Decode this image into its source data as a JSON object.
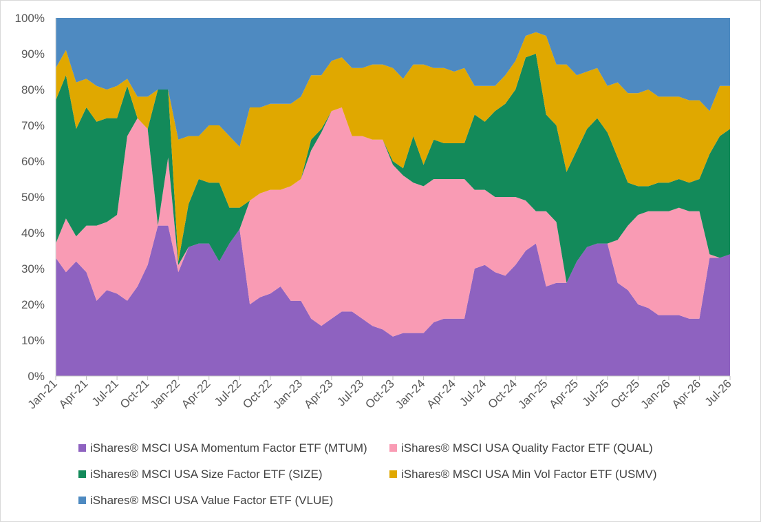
{
  "chart_data": {
    "type": "area",
    "stacked": true,
    "normalized": true,
    "title": "",
    "xlabel": "",
    "ylabel": "",
    "ylim": [
      0,
      100
    ],
    "y_ticks": [
      "0%",
      "10%",
      "20%",
      "30%",
      "40%",
      "50%",
      "60%",
      "70%",
      "80%",
      "90%",
      "100%"
    ],
    "x_tick_labels": [
      "Jan-21",
      "Apr-21",
      "Jul-21",
      "Oct-21",
      "Jan-22",
      "Apr-22",
      "Jul-22",
      "Oct-22",
      "Jan-23",
      "Apr-23",
      "Jul-23",
      "Oct-23",
      "Jan-24",
      "Apr-24",
      "Jul-24",
      "Oct-24",
      "Jan-25",
      "Apr-25",
      "Jul-25",
      "Oct-25",
      "Jan-26",
      "Apr-26",
      "Jul-26"
    ],
    "grid": false,
    "legend_position": "bottom",
    "x": [
      "Jan-21",
      "Feb-21",
      "Mar-21",
      "Apr-21",
      "May-21",
      "Jun-21",
      "Jul-21",
      "Aug-21",
      "Sep-21",
      "Oct-21",
      "Nov-21",
      "Dec-21",
      "Jan-22",
      "Feb-22",
      "Mar-22",
      "Apr-22",
      "May-22",
      "Jun-22",
      "Jul-22",
      "Aug-22",
      "Sep-22",
      "Oct-22",
      "Nov-22",
      "Dec-22",
      "Jan-23",
      "Feb-23",
      "Mar-23",
      "Apr-23",
      "May-23",
      "Jun-23",
      "Jul-23",
      "Aug-23",
      "Sep-23",
      "Oct-23",
      "Nov-23",
      "Dec-23",
      "Jan-24",
      "Feb-24",
      "Mar-24",
      "Apr-24",
      "May-24",
      "Jun-24",
      "Jul-24",
      "Aug-24",
      "Sep-24",
      "Oct-24",
      "Nov-24",
      "Dec-24",
      "Jan-25",
      "Feb-25",
      "Mar-25",
      "Apr-25",
      "May-25",
      "Jun-25",
      "Jul-25",
      "Aug-25",
      "Sep-25",
      "Oct-25",
      "Nov-25",
      "Dec-25",
      "Jan-26",
      "Feb-26",
      "Mar-26",
      "Apr-26",
      "May-26",
      "Jun-26",
      "Jul-26"
    ],
    "series": [
      {
        "name": "iShares® MSCI USA Momentum Factor ETF (MTUM)",
        "color": "#8e62c0",
        "values": [
          33,
          29,
          32,
          29,
          21,
          24,
          23,
          21,
          25,
          31,
          42,
          42,
          29,
          36,
          37,
          37,
          32,
          37,
          41,
          20,
          22,
          23,
          25,
          21,
          21,
          16,
          14,
          16,
          18,
          18,
          16,
          14,
          13,
          11,
          12,
          12,
          12,
          15,
          16,
          16,
          16,
          30,
          31,
          29,
          28,
          31,
          35,
          37,
          25,
          26,
          26,
          32,
          36,
          37,
          37,
          26,
          24,
          20,
          19,
          17,
          17,
          17,
          16,
          16,
          33,
          33,
          34
        ]
      },
      {
        "name": "iShares® MSCI USA Quality Factor ETF (QUAL)",
        "color": "#f99bb4",
        "values": [
          4,
          15,
          7,
          13,
          21,
          19,
          22,
          46,
          47,
          38,
          0,
          19,
          2,
          0,
          0,
          0,
          0,
          0,
          0,
          29,
          29,
          29,
          27,
          32,
          34,
          47,
          54,
          58,
          57,
          49,
          51,
          52,
          53,
          48,
          44,
          42,
          41,
          40,
          39,
          39,
          39,
          22,
          21,
          21,
          22,
          19,
          14,
          9,
          21,
          17,
          0,
          0,
          0,
          0,
          0,
          12,
          18,
          25,
          27,
          29,
          29,
          30,
          30,
          30,
          1,
          0,
          0
        ]
      },
      {
        "name": "iShares® MSCI USA Size Factor ETF (SIZE)",
        "color": "#138a5a",
        "values": [
          40,
          40,
          30,
          33,
          29,
          29,
          27,
          14,
          0,
          0,
          38,
          19,
          1,
          12,
          18,
          17,
          22,
          10,
          6,
          0,
          0,
          0,
          0,
          0,
          0,
          3,
          1,
          0,
          0,
          0,
          0,
          0,
          0,
          1,
          2,
          13,
          6,
          11,
          10,
          10,
          10,
          21,
          19,
          24,
          26,
          30,
          40,
          44,
          27,
          27,
          31,
          31,
          33,
          35,
          31,
          23,
          12,
          8,
          7,
          8,
          8,
          8,
          8,
          9,
          28,
          34,
          35
        ]
      },
      {
        "name": "iShares® MSCI USA Min Vol Factor ETF (USMV)",
        "color": "#e0a800",
        "values": [
          9,
          7,
          13,
          8,
          10,
          8,
          9,
          2,
          6,
          9,
          0,
          0,
          34,
          19,
          12,
          16,
          16,
          20,
          17,
          26,
          24,
          24,
          24,
          23,
          23,
          18,
          15,
          14,
          14,
          19,
          19,
          21,
          21,
          26,
          25,
          20,
          28,
          20,
          21,
          20,
          21,
          8,
          10,
          7,
          8,
          8,
          6,
          6,
          22,
          17,
          30,
          21,
          16,
          14,
          13,
          21,
          25,
          26,
          27,
          24,
          24,
          23,
          23,
          22,
          12,
          14,
          12
        ]
      },
      {
        "name": "iShares® MSCI USA Value Factor ETF (VLUE)",
        "color": "#4e8ac1",
        "values": [
          14,
          9,
          18,
          17,
          19,
          20,
          19,
          17,
          22,
          22,
          20,
          20,
          34,
          33,
          33,
          30,
          30,
          33,
          36,
          25,
          25,
          24,
          24,
          24,
          22,
          16,
          16,
          12,
          11,
          14,
          14,
          13,
          13,
          14,
          17,
          13,
          13,
          14,
          14,
          15,
          14,
          19,
          19,
          19,
          16,
          12,
          5,
          4,
          5,
          13,
          13,
          16,
          15,
          14,
          19,
          18,
          21,
          21,
          20,
          22,
          22,
          22,
          23,
          23,
          26,
          19,
          19
        ]
      }
    ]
  }
}
